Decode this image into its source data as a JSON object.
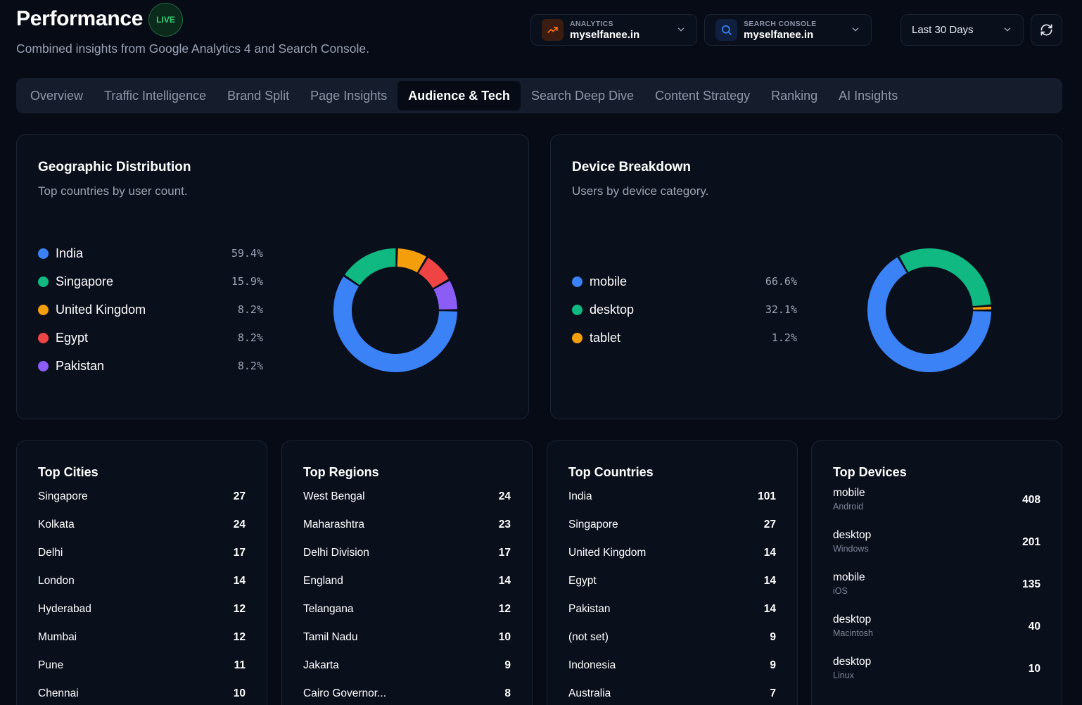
{
  "header": {
    "title": "Performance",
    "live_badge": "LIVE",
    "subtitle": "Combined insights from Google Analytics 4 and Search Console."
  },
  "sources": [
    {
      "label": "ANALYTICS",
      "value": "myselfanee.in",
      "icon": "trend-up-icon",
      "color": "#f97316"
    },
    {
      "label": "SEARCH CONSOLE",
      "value": "myselfanee.in",
      "icon": "search-icon",
      "color": "#3b82f6"
    }
  ],
  "date_range": "Last 30 Days",
  "tabs": [
    {
      "label": "Overview",
      "active": false
    },
    {
      "label": "Traffic Intelligence",
      "active": false
    },
    {
      "label": "Brand Split",
      "active": false
    },
    {
      "label": "Page Insights",
      "active": false
    },
    {
      "label": "Audience & Tech",
      "active": true
    },
    {
      "label": "Search Deep Dive",
      "active": false
    },
    {
      "label": "Content Strategy",
      "active": false
    },
    {
      "label": "Ranking",
      "active": false
    },
    {
      "label": "AI Insights",
      "active": false
    }
  ],
  "geo": {
    "title": "Geographic Distribution",
    "subtitle": "Top countries by user count.",
    "items": [
      {
        "name": "India",
        "value": "59.4%",
        "pct": 59.4,
        "color": "#3b82f6"
      },
      {
        "name": "Singapore",
        "value": "15.9%",
        "pct": 15.9,
        "color": "#10b981"
      },
      {
        "name": "United Kingdom",
        "value": "8.2%",
        "pct": 8.2,
        "color": "#f59e0b"
      },
      {
        "name": "Egypt",
        "value": "8.2%",
        "pct": 8.2,
        "color": "#ef4444"
      },
      {
        "name": "Pakistan",
        "value": "8.2%",
        "pct": 8.2,
        "color": "#8b5cf6"
      }
    ]
  },
  "device": {
    "title": "Device Breakdown",
    "subtitle": "Users by device category.",
    "items": [
      {
        "name": "mobile",
        "value": "66.6%",
        "pct": 66.6,
        "color": "#3b82f6"
      },
      {
        "name": "desktop",
        "value": "32.1%",
        "pct": 32.1,
        "color": "#10b981"
      },
      {
        "name": "tablet",
        "value": "1.2%",
        "pct": 1.2,
        "color": "#f59e0b"
      }
    ]
  },
  "top_cities": {
    "title": "Top Cities",
    "rows": [
      {
        "name": "Singapore",
        "value": "27"
      },
      {
        "name": "Kolkata",
        "value": "24"
      },
      {
        "name": "Delhi",
        "value": "17"
      },
      {
        "name": "London",
        "value": "14"
      },
      {
        "name": "Hyderabad",
        "value": "12"
      },
      {
        "name": "Mumbai",
        "value": "12"
      },
      {
        "name": "Pune",
        "value": "11"
      },
      {
        "name": "Chennai",
        "value": "10"
      }
    ]
  },
  "top_regions": {
    "title": "Top Regions",
    "rows": [
      {
        "name": "West Bengal",
        "value": "24"
      },
      {
        "name": "Maharashtra",
        "value": "23"
      },
      {
        "name": "Delhi Division",
        "value": "17"
      },
      {
        "name": "England",
        "value": "14"
      },
      {
        "name": "Telangana",
        "value": "12"
      },
      {
        "name": "Tamil Nadu",
        "value": "10"
      },
      {
        "name": "Jakarta",
        "value": "9"
      },
      {
        "name": "Cairo Governor...",
        "value": "8"
      }
    ]
  },
  "top_countries": {
    "title": "Top Countries",
    "rows": [
      {
        "name": "India",
        "value": "101"
      },
      {
        "name": "Singapore",
        "value": "27"
      },
      {
        "name": "United Kingdom",
        "value": "14"
      },
      {
        "name": "Egypt",
        "value": "14"
      },
      {
        "name": "Pakistan",
        "value": "14"
      },
      {
        "name": "(not set)",
        "value": "9"
      },
      {
        "name": "Indonesia",
        "value": "9"
      },
      {
        "name": "Australia",
        "value": "7"
      }
    ]
  },
  "top_devices": {
    "title": "Top Devices",
    "rows": [
      {
        "name": "mobile",
        "os": "Android",
        "value": "408"
      },
      {
        "name": "desktop",
        "os": "Windows",
        "value": "201"
      },
      {
        "name": "mobile",
        "os": "iOS",
        "value": "135"
      },
      {
        "name": "desktop",
        "os": "Macintosh",
        "value": "40"
      },
      {
        "name": "desktop",
        "os": "Linux",
        "value": "10"
      }
    ]
  }
}
